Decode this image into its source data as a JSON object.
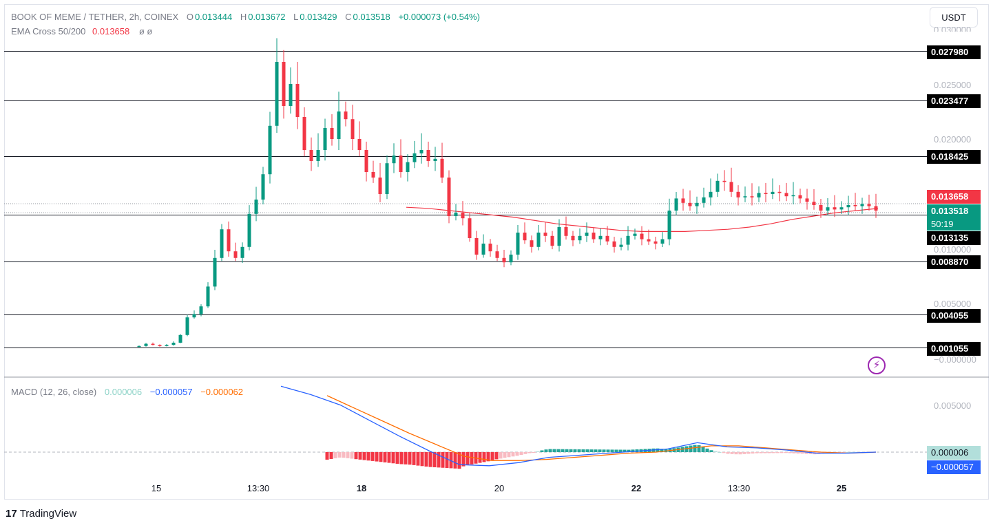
{
  "header": {
    "symbol": "BOOK OF MEME / TETHER, 2h, COINEX",
    "o_label": "O",
    "o": "0.013444",
    "h_label": "H",
    "h": "0.013672",
    "l_label": "L",
    "l": "0.013429",
    "c_label": "C",
    "c": "0.013518",
    "change": "+0.000073 (+0.54%)",
    "ema_label": "EMA Cross 50/200",
    "ema_value": "0.013658",
    "ema_extra": "ø  ø"
  },
  "currency_button": "USDT",
  "macd_legend": {
    "label": "MACD (12, 26, close)",
    "hist": "0.000006",
    "macd": "−0.000057",
    "signal": "−0.000062"
  },
  "price_axis": {
    "ticks": [
      "0.025000",
      "0.020000",
      "0.010000",
      "0.005000",
      "−0.000000"
    ],
    "top_partial": "0.030000"
  },
  "macd_axis": {
    "ticks": [
      "0.005000"
    ]
  },
  "levels": [
    "0.027980",
    "0.023477",
    "0.018425",
    "0.013135",
    "0.008870",
    "0.004055",
    "0.001055"
  ],
  "price_tags": {
    "ema": "0.013658",
    "last": "0.013518",
    "countdown": "50:19",
    "macd_hist": "0.000006",
    "macd_line": "−0.000057"
  },
  "x_labels": [
    "15",
    "13:30",
    "18",
    "20",
    "22",
    "13:30",
    "25"
  ],
  "x_labels_bold": [
    false,
    false,
    true,
    false,
    true,
    false,
    true
  ],
  "brand": {
    "logo": "17",
    "name": "TradingView"
  },
  "colors": {
    "up": "#089981",
    "down": "#f23645",
    "macd": "#2962ff",
    "signal": "#ff6d00",
    "ema": "#f23645"
  },
  "chart_data": {
    "type": "candlestick",
    "title": "BOOK OF MEME / TETHER, 2h, COINEX",
    "ylim": [
      -0.0001,
      0.031
    ],
    "levels": [
      0.02798,
      0.023477,
      0.018425,
      0.013135,
      0.00887,
      0.004055,
      0.001055
    ],
    "ohlc_close_series": [
      0.0012,
      0.0014,
      0.0013,
      0.0012,
      0.0013,
      0.0015,
      0.0022,
      0.0038,
      0.0041,
      0.0048,
      0.0066,
      0.0092,
      0.0118,
      0.0098,
      0.0092,
      0.0102,
      0.0132,
      0.0145,
      0.0168,
      0.0212,
      0.027,
      0.023,
      0.025,
      0.022,
      0.019,
      0.018,
      0.019,
      0.021,
      0.02,
      0.0225,
      0.0218,
      0.02,
      0.019,
      0.017,
      0.0165,
      0.015,
      0.0178,
      0.0185,
      0.017,
      0.0179,
      0.0187,
      0.019,
      0.018,
      0.0182,
      0.0165,
      0.013,
      0.0133,
      0.0128,
      0.011,
      0.0095,
      0.0105,
      0.0098,
      0.0092,
      0.0088,
      0.0095,
      0.0115,
      0.0108,
      0.0102,
      0.0115,
      0.0112,
      0.0103,
      0.012,
      0.0112,
      0.0108,
      0.0112,
      0.0115,
      0.0109,
      0.0112,
      0.0107,
      0.0102,
      0.0104,
      0.0112,
      0.0114,
      0.0109,
      0.0107,
      0.0105,
      0.0109,
      0.0135,
      0.0146,
      0.0142,
      0.0139,
      0.0142,
      0.0147,
      0.0152,
      0.0162,
      0.0161,
      0.0152,
      0.0147,
      0.0148,
      0.0147,
      0.0151,
      0.015,
      0.0152,
      0.0151,
      0.0148,
      0.0149,
      0.0146,
      0.0143,
      0.014,
      0.0135,
      0.0138,
      0.0136,
      0.0138,
      0.014,
      0.0139,
      0.0141,
      0.0139,
      0.0135
    ],
    "ema_series": [
      0.0138,
      0.0137,
      0.0135,
      0.0133,
      0.0131,
      0.0129,
      0.0126,
      0.0123,
      0.0121,
      0.0119,
      0.0117,
      0.0116,
      0.0116,
      0.0116,
      0.0117,
      0.0118,
      0.012,
      0.0123,
      0.0127,
      0.013,
      0.0133,
      0.0135,
      0.0137
    ],
    "macd_line": [
      0.0063,
      0.0055,
      0.0045,
      0.003,
      0.0015,
      0.0001,
      -0.0012,
      -0.0013,
      -0.001,
      -0.0005,
      -0.0003,
      -0.0001,
      0.0001,
      0.0003,
      0.0009,
      0.0005,
      0.0004,
      0.0002,
      -0.0001,
      -0.0001,
      0.0
    ],
    "signal_line": [
      0.0054,
      0.0042,
      0.003,
      0.0018,
      0.0007,
      -0.0004,
      -0.0008,
      -0.0008,
      -0.0007,
      -0.0005,
      -0.0003,
      -0.0001,
      0.0,
      0.0003,
      0.0006,
      0.0006,
      0.0004,
      0.0002,
      0.0,
      -0.0001,
      0.0
    ],
    "macd_ylim": [
      -0.0016,
      0.0072
    ]
  }
}
